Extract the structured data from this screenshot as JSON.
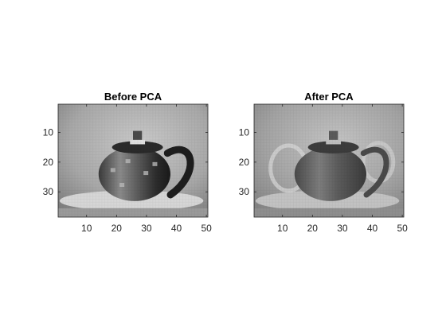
{
  "chart_data": [
    {
      "type": "heatmap",
      "title": "Before PCA",
      "xlabel": "",
      "ylabel": "",
      "colormap": "gray",
      "xlim": [
        0.5,
        50.5
      ],
      "ylim": [
        0.5,
        38.5
      ],
      "xticks": [
        10,
        20,
        30,
        40,
        50
      ],
      "yticks": [
        10,
        20,
        30
      ],
      "image_size": {
        "columns": 50,
        "rows": 38
      },
      "content": "grayscale teapot image, original",
      "grid": false
    },
    {
      "type": "heatmap",
      "title": "After PCA",
      "xlabel": "",
      "ylabel": "",
      "colormap": "gray",
      "xlim": [
        0.5,
        50.5
      ],
      "ylim": [
        0.5,
        38.5
      ],
      "xticks": [
        10,
        20,
        30,
        40,
        50
      ],
      "yticks": [
        10,
        20,
        30
      ],
      "image_size": {
        "columns": 50,
        "rows": 38
      },
      "content": "grayscale teapot image, PCA reconstruction",
      "grid": false
    }
  ],
  "colors": {
    "background": "#ffffff",
    "axis": "#262626",
    "title": "#000000"
  }
}
